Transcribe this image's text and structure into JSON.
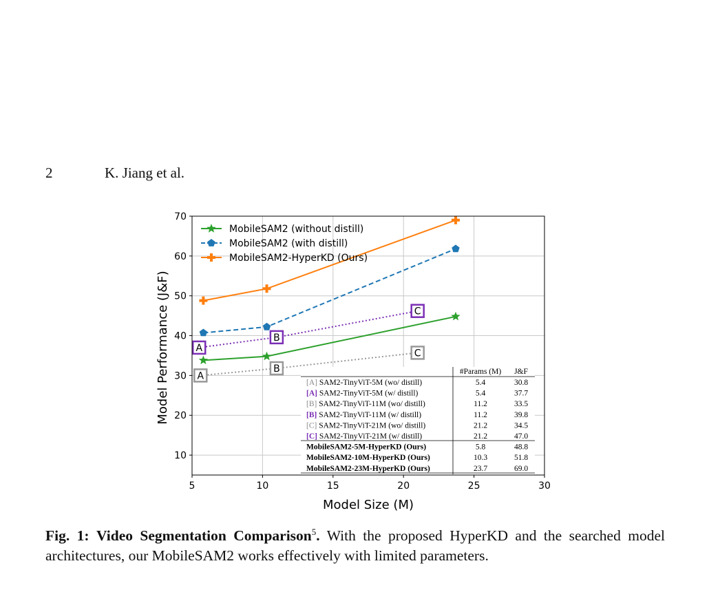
{
  "header": {
    "page_number": "2",
    "authors": "K. Jiang et al."
  },
  "caption": {
    "label": "Fig. 1:",
    "title": "Video Segmentation Comparison",
    "footnote_mark": "5",
    "title_end": ".",
    "text": " With the proposed HyperKD and the searched model architectures, our MobileSAM2 works effectively with limited parameters."
  },
  "colors": {
    "green": "#2ca02c",
    "blue": "#1f77b4",
    "orange": "#ff7f0e",
    "purple": "#7b2fb5",
    "gray": "#999999"
  },
  "chart_data": {
    "type": "line",
    "xlabel": "Model Size (M)",
    "ylabel": "Model Performance (J&F)",
    "xlim": [
      5,
      30
    ],
    "ylim": [
      5,
      70
    ],
    "xticks": [
      5,
      10,
      15,
      20,
      25,
      30
    ],
    "yticks": [
      10,
      20,
      30,
      40,
      50,
      60,
      70
    ],
    "grid": true,
    "legend_position": "top-left",
    "series": [
      {
        "name": "MobileSAM2 (without distill)",
        "style": "solid",
        "marker": "star",
        "color": "#2ca02c",
        "x": [
          5.8,
          10.3,
          23.7
        ],
        "y": [
          33.8,
          34.8,
          44.8
        ]
      },
      {
        "name": "MobileSAM2 (with distill)",
        "style": "dashed",
        "marker": "pentagon",
        "color": "#1f77b4",
        "x": [
          5.8,
          10.3,
          23.7
        ],
        "y": [
          40.7,
          42.2,
          61.8
        ]
      },
      {
        "name": "MobileSAM2-HyperKD (Ours)",
        "style": "solid",
        "marker": "plus",
        "color": "#ff7f0e",
        "x": [
          5.8,
          10.3,
          23.7
        ],
        "y": [
          48.8,
          51.8,
          69.0
        ]
      }
    ],
    "annotations": [
      {
        "group": "with",
        "color": "#7b2fb5",
        "points": [
          {
            "label": "A",
            "x": 5.5,
            "y": 37.0
          },
          {
            "label": "B",
            "x": 11.0,
            "y": 39.6
          },
          {
            "label": "C",
            "x": 21.0,
            "y": 46.2
          }
        ]
      },
      {
        "group": "without",
        "color": "#999999",
        "points": [
          {
            "label": "A",
            "x": 5.6,
            "y": 30.0
          },
          {
            "label": "B",
            "x": 11.0,
            "y": 31.8
          },
          {
            "label": "C",
            "x": 21.0,
            "y": 35.7
          }
        ]
      }
    ],
    "table": {
      "headers": [
        "",
        "#Params (M)",
        "J&F"
      ],
      "rows": [
        {
          "prefix": "[A]",
          "name": "SAM2-TinyViT-5M (wo/ distill)",
          "params": "5.4",
          "jf": "30.8",
          "kind": "wo"
        },
        {
          "prefix": "[A]",
          "name": "SAM2-TinyViT-5M (w/ distill)",
          "params": "5.4",
          "jf": "37.7",
          "kind": "w"
        },
        {
          "prefix": "[B]",
          "name": "SAM2-TinyViT-11M (wo/ distill)",
          "params": "11.2",
          "jf": "33.5",
          "kind": "wo"
        },
        {
          "prefix": "[B]",
          "name": "SAM2-TinyViT-11M (w/ distill)",
          "params": "11.2",
          "jf": "39.8",
          "kind": "w"
        },
        {
          "prefix": "[C]",
          "name": "SAM2-TinyViT-21M (wo/ distill)",
          "params": "21.2",
          "jf": "34.5",
          "kind": "wo"
        },
        {
          "prefix": "[C]",
          "name": "SAM2-TinyViT-21M (w/ distill)",
          "params": "21.2",
          "jf": "47.0",
          "kind": "w"
        },
        {
          "prefix": "",
          "name": "MobileSAM2-5M-HyperKD (Ours)",
          "params": "5.8",
          "jf": "48.8",
          "kind": "ours"
        },
        {
          "prefix": "",
          "name": "MobileSAM2-10M-HyperKD (Ours)",
          "params": "10.3",
          "jf": "51.8",
          "kind": "ours"
        },
        {
          "prefix": "",
          "name": "MobileSAM2-23M-HyperKD (Ours)",
          "params": "23.7",
          "jf": "69.0",
          "kind": "ours"
        }
      ]
    }
  }
}
